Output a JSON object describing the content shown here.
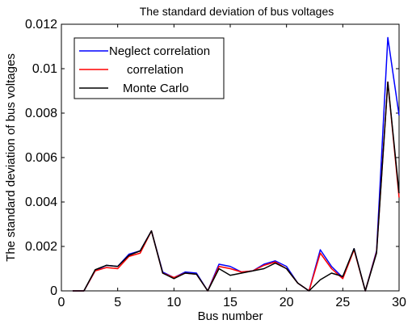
{
  "chart_data": {
    "type": "line",
    "title": "The standard deviation of bus voltages",
    "xlabel": "Bus number",
    "ylabel": "The standard deviation of bus voltages",
    "xlim": [
      0,
      30
    ],
    "ylim": [
      0,
      0.012
    ],
    "xticks": [
      0,
      5,
      10,
      15,
      20,
      25,
      30
    ],
    "yticks": [
      0,
      0.002,
      0.004,
      0.006,
      0.008,
      0.01,
      0.012
    ],
    "ytick_labels": [
      "0",
      "0.002",
      "0.004",
      "0.006",
      "0.008",
      "0.01",
      "0.012"
    ],
    "grid": false,
    "legend_position": "top-left",
    "x": [
      1,
      2,
      3,
      4,
      5,
      6,
      7,
      8,
      9,
      10,
      11,
      12,
      13,
      14,
      15,
      16,
      17,
      18,
      19,
      20,
      21,
      22,
      23,
      24,
      25,
      26,
      27,
      28,
      29,
      30
    ],
    "series": [
      {
        "name": "Neglect correlation",
        "color": "#0000ff",
        "values": [
          0,
          0,
          0.0009,
          0.00115,
          0.0011,
          0.00165,
          0.0018,
          0.0027,
          0.00085,
          0.0006,
          0.00085,
          0.0008,
          0,
          0.0012,
          0.0011,
          0.00085,
          0.0009,
          0.0012,
          0.00135,
          0.0011,
          0.00035,
          0,
          0.00185,
          0.0011,
          0.0006,
          0.0019,
          0,
          0.0018,
          0.0114,
          0.0079
        ]
      },
      {
        "name": "correlation",
        "color": "#ff0000",
        "values": [
          0,
          0,
          0.0009,
          0.00105,
          0.001,
          0.00155,
          0.0017,
          0.0027,
          0.0008,
          0.0006,
          0.0008,
          0.00075,
          0,
          0.0011,
          0.001,
          0.00085,
          0.0009,
          0.00115,
          0.0013,
          0.001,
          0.00035,
          0,
          0.0017,
          0.001,
          0.00055,
          0.00185,
          0,
          0.00175,
          0.0094,
          0.0042
        ]
      },
      {
        "name": "Monte Carlo",
        "color": "#000000",
        "values": [
          0,
          0,
          0.00095,
          0.00115,
          0.0011,
          0.0016,
          0.0018,
          0.0027,
          0.0008,
          0.00055,
          0.0008,
          0.00075,
          0,
          0.001,
          0.0007,
          0.0008,
          0.0009,
          0.001,
          0.00125,
          0.001,
          0.00035,
          0,
          0.0005,
          0.0008,
          0.00065,
          0.0019,
          0,
          0.0017,
          0.0094,
          0.0044
        ]
      }
    ]
  }
}
